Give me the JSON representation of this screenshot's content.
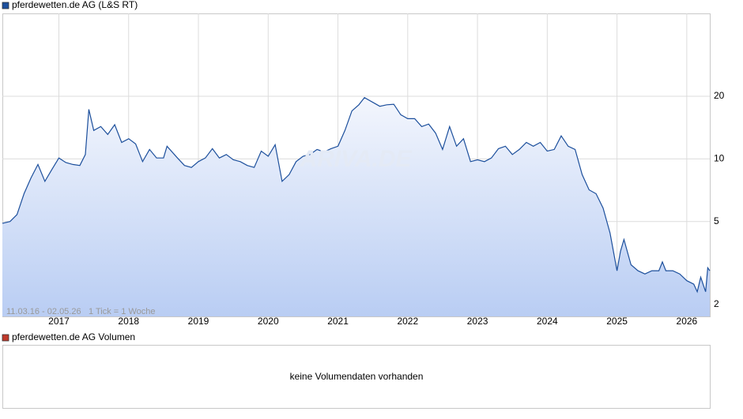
{
  "chart_data": [
    {
      "type": "line",
      "log_y": true,
      "grid": true,
      "watermark": "ARIVA.DE",
      "annotations": [
        "11.03.16 - 02.05.26",
        "1 Tick = 1 Woche"
      ],
      "x": [
        2016.19,
        2016.3,
        2016.4,
        2016.5,
        2016.6,
        2016.7,
        2016.8,
        2016.9,
        2017.0,
        2017.1,
        2017.2,
        2017.3,
        2017.38,
        2017.43,
        2017.5,
        2017.6,
        2017.7,
        2017.8,
        2017.9,
        2018.0,
        2018.1,
        2018.2,
        2018.3,
        2018.4,
        2018.5,
        2018.55,
        2018.7,
        2018.8,
        2018.9,
        2019.0,
        2019.1,
        2019.2,
        2019.3,
        2019.4,
        2019.5,
        2019.6,
        2019.7,
        2019.8,
        2019.9,
        2020.0,
        2020.1,
        2020.2,
        2020.3,
        2020.4,
        2020.5,
        2020.6,
        2020.7,
        2020.8,
        2020.9,
        2021.0,
        2021.1,
        2021.2,
        2021.3,
        2021.38,
        2021.5,
        2021.6,
        2021.7,
        2021.8,
        2021.9,
        2022.0,
        2022.1,
        2022.2,
        2022.3,
        2022.4,
        2022.5,
        2022.6,
        2022.7,
        2022.8,
        2022.9,
        2023.0,
        2023.1,
        2023.2,
        2023.3,
        2023.4,
        2023.5,
        2023.6,
        2023.7,
        2023.8,
        2023.9,
        2024.0,
        2024.1,
        2024.2,
        2024.3,
        2024.4,
        2024.5,
        2024.6,
        2024.7,
        2024.8,
        2024.9,
        2025.0,
        2025.05,
        2025.1,
        2025.2,
        2025.3,
        2025.4,
        2025.5,
        2025.6,
        2025.65,
        2025.7,
        2025.8,
        2025.9,
        2026.0,
        2026.1,
        2026.15,
        2026.2,
        2026.27,
        2026.3,
        2026.33
      ],
      "series": [
        {
          "name": "pferdewetten.de AG (L&S RT)",
          "color": "#1c4f9c",
          "values": [
            4.9,
            5.0,
            5.4,
            6.8,
            8.1,
            9.4,
            7.8,
            8.9,
            10.1,
            9.6,
            9.4,
            9.3,
            10.5,
            17.3,
            13.7,
            14.3,
            13.1,
            14.6,
            12.0,
            12.5,
            11.8,
            9.7,
            11.1,
            10.1,
            10.1,
            11.5,
            10.1,
            9.3,
            9.1,
            9.7,
            10.1,
            11.2,
            10.1,
            10.5,
            9.9,
            9.7,
            9.3,
            9.1,
            10.9,
            10.3,
            11.7,
            7.8,
            8.4,
            9.7,
            10.3,
            10.5,
            11.1,
            10.8,
            11.2,
            11.5,
            13.7,
            17.0,
            18.2,
            19.7,
            18.7,
            17.9,
            18.2,
            18.3,
            16.3,
            15.6,
            15.6,
            14.3,
            14.7,
            13.3,
            11.1,
            14.3,
            11.5,
            12.5,
            9.7,
            9.9,
            9.7,
            10.1,
            11.2,
            11.5,
            10.5,
            11.1,
            12.0,
            11.5,
            12.0,
            10.9,
            11.1,
            12.9,
            11.5,
            11.1,
            8.4,
            7.1,
            6.8,
            5.8,
            4.4,
            2.9,
            3.6,
            4.1,
            3.1,
            2.9,
            2.8,
            2.9,
            2.9,
            3.2,
            2.9,
            2.9,
            2.8,
            2.6,
            2.5,
            2.3,
            2.7,
            2.3,
            3.0,
            2.9
          ]
        }
      ],
      "xlim": [
        2016.19,
        2026.33
      ],
      "xticks": [
        2017,
        2018,
        2019,
        2020,
        2021,
        2022,
        2023,
        2024,
        2025,
        2026
      ],
      "ylim": [
        1.75,
        50
      ],
      "yticks": [
        2,
        5,
        10,
        20
      ]
    },
    {
      "type": "empty",
      "title": "pferdewetten.de AG Volumen",
      "color": "#c0392b",
      "message": "keine Volumendaten vorhanden"
    }
  ]
}
